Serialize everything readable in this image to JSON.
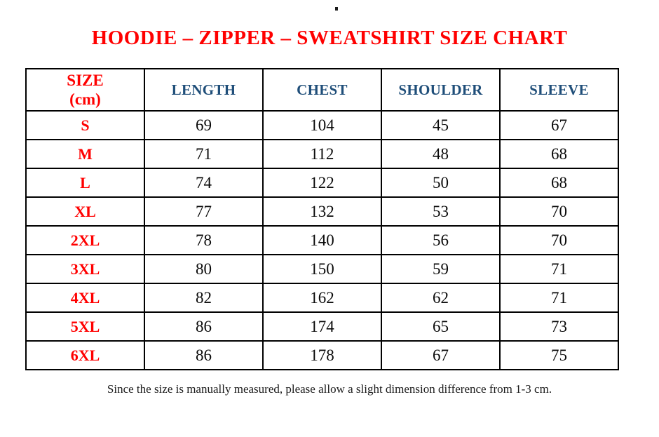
{
  "title": "HOODIE – ZIPPER – SWEATSHIRT SIZE CHART",
  "table": {
    "size_header": {
      "line1": "SIZE",
      "line2": "(cm)"
    },
    "column_headers": [
      "LENGTH",
      "CHEST",
      "SHOULDER",
      "SLEEVE"
    ],
    "rows": [
      {
        "size": "S",
        "values": [
          69,
          104,
          45,
          67
        ]
      },
      {
        "size": "M",
        "values": [
          71,
          112,
          48,
          68
        ]
      },
      {
        "size": "L",
        "values": [
          74,
          122,
          50,
          68
        ]
      },
      {
        "size": "XL",
        "values": [
          77,
          132,
          53,
          70
        ]
      },
      {
        "size": "2XL",
        "values": [
          78,
          140,
          56,
          70
        ]
      },
      {
        "size": "3XL",
        "values": [
          80,
          150,
          59,
          71
        ]
      },
      {
        "size": "4XL",
        "values": [
          82,
          162,
          62,
          71
        ]
      },
      {
        "size": "5XL",
        "values": [
          86,
          174,
          65,
          73
        ]
      },
      {
        "size": "6XL",
        "values": [
          86,
          178,
          67,
          75
        ]
      }
    ]
  },
  "footnote": "Since the size is manually measured, please allow a slight dimension difference from 1-3 cm.",
  "colors": {
    "title_red": "#ff0000",
    "size_label_red": "#ff0000",
    "column_header_blue": "#1f4e79",
    "value_text": "#0a0a0a",
    "border": "#000000",
    "background": "#ffffff"
  }
}
